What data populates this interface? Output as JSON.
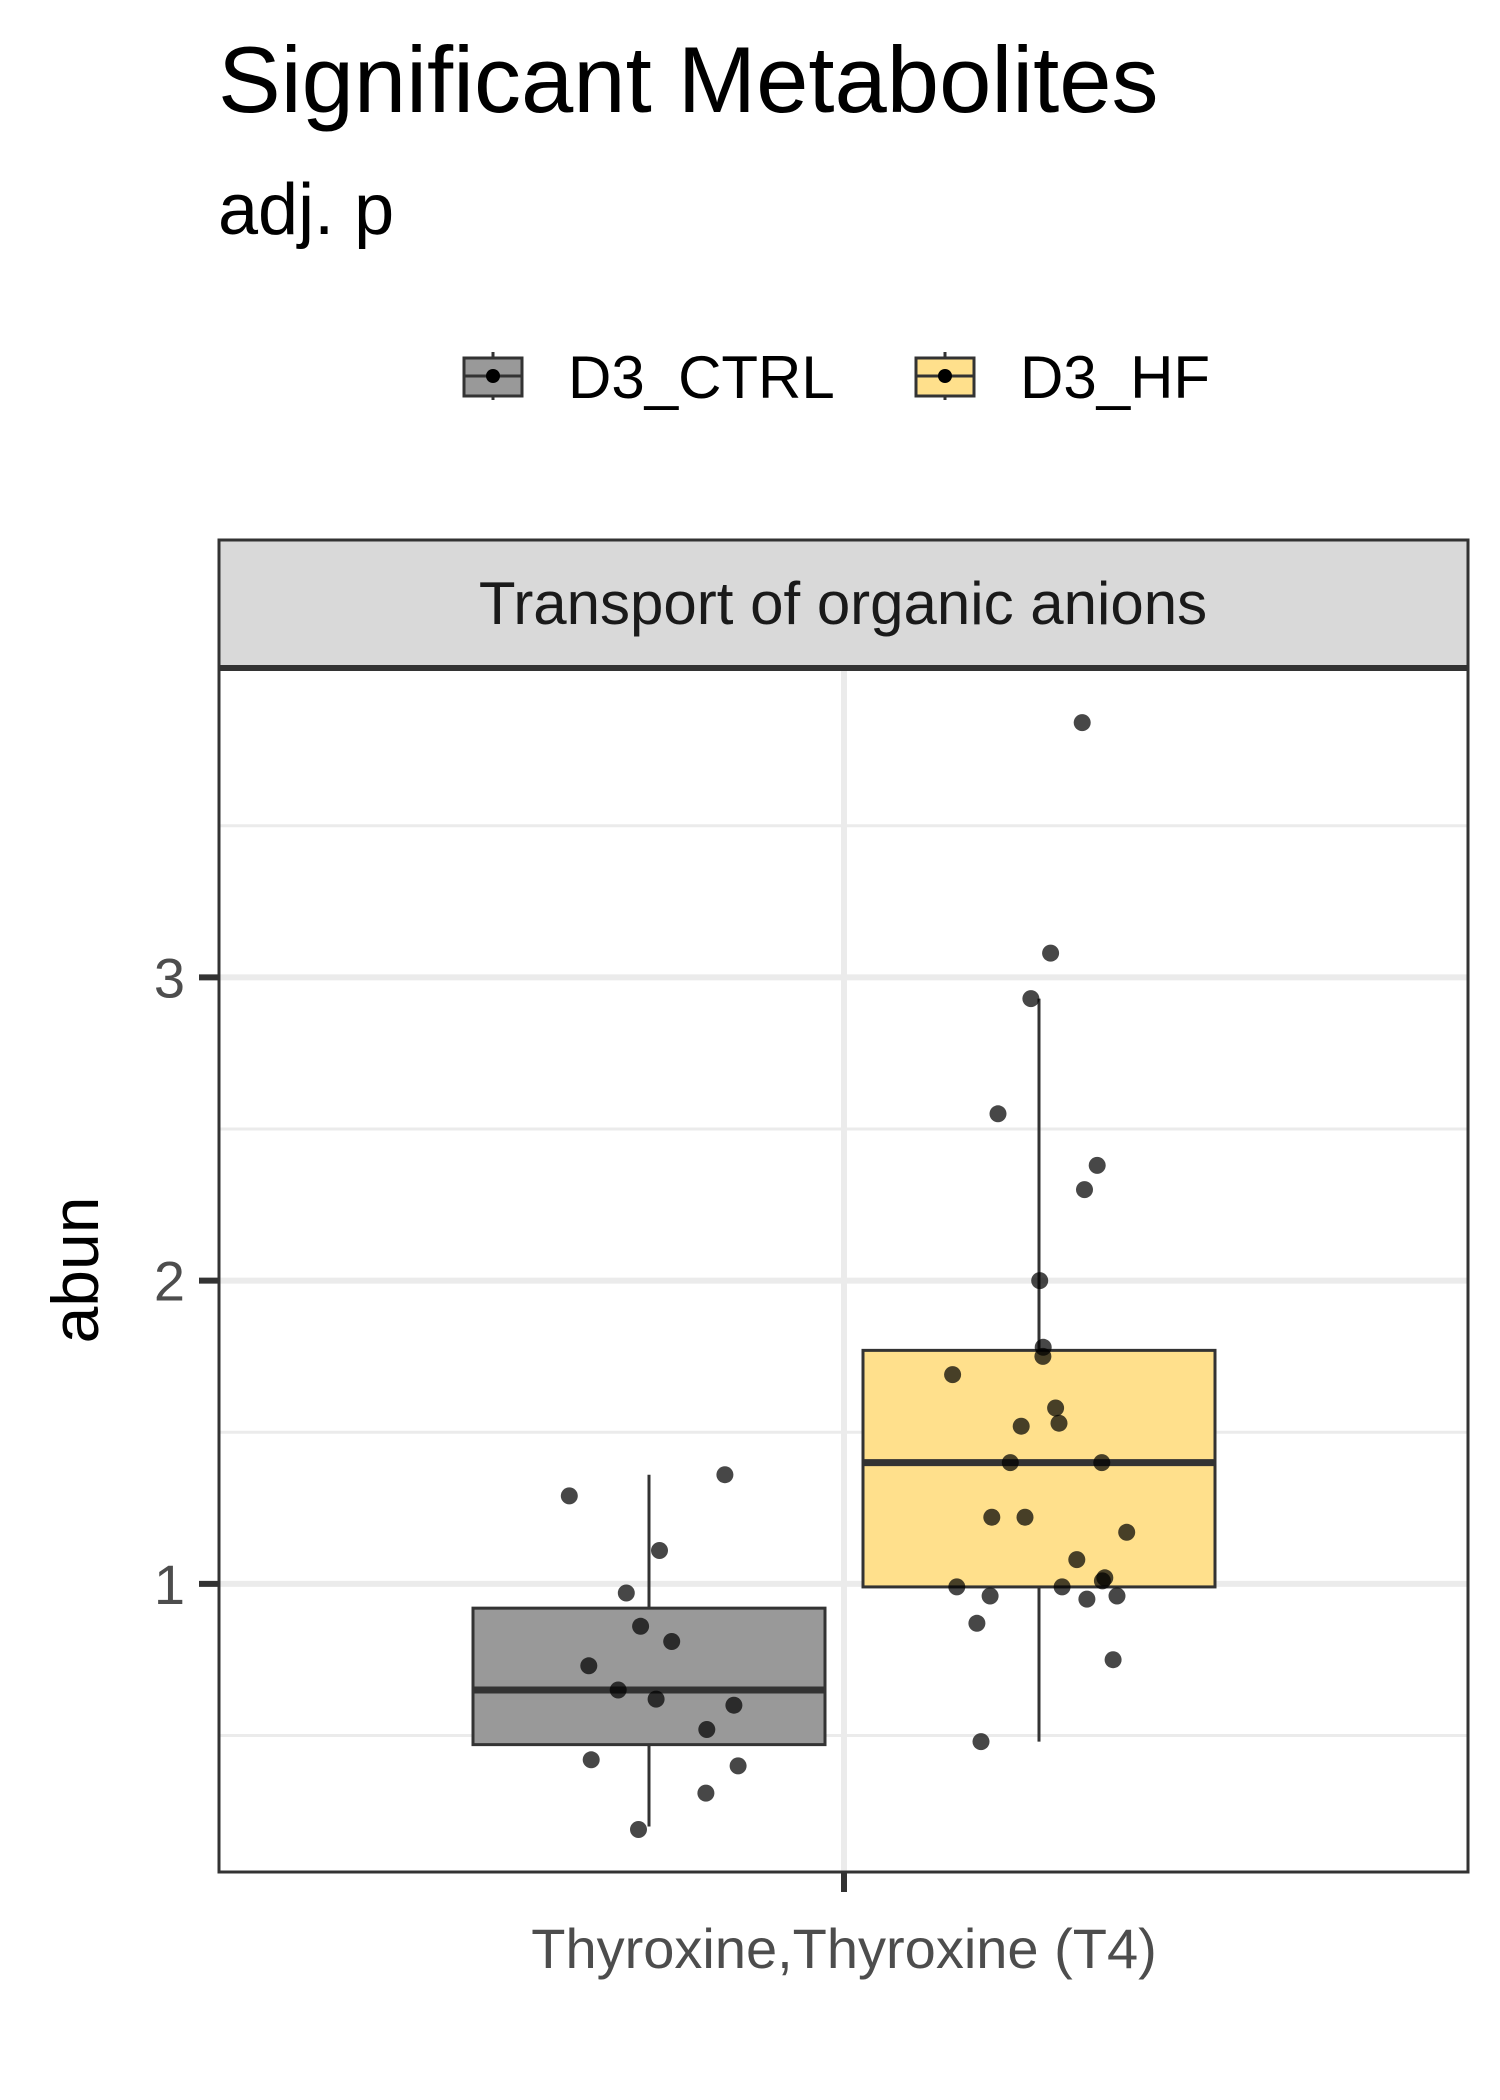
{
  "chart_data": {
    "type": "box",
    "title": "Significant Metabolites",
    "subtitle": "adj. p",
    "facet_label": "Transport of organic anions",
    "xlabel": "",
    "ylabel": "abun",
    "categories": [
      "Thyroxine,Thyroxine (T4)"
    ],
    "ylim": [
      0.05,
      4.02
    ],
    "yticks": [
      1,
      2,
      3
    ],
    "grid": true,
    "legend_position": "top",
    "series": [
      {
        "name": "D3_CTRL",
        "color": "#999999",
        "box": {
          "q1": 0.47,
          "median": 0.65,
          "q3": 0.92,
          "whisker_low": 0.2,
          "whisker_high": 1.36
        },
        "points": [
          1.36,
          1.29,
          1.11,
          0.97,
          0.86,
          0.81,
          0.73,
          0.65,
          0.62,
          0.6,
          0.52,
          0.42,
          0.4,
          0.31,
          0.19
        ]
      },
      {
        "name": "D3_HF",
        "color": "#FFE08C",
        "box": {
          "q1": 0.99,
          "median": 1.4,
          "q3": 1.77,
          "whisker_low": 0.48,
          "whisker_high": 2.93
        },
        "points": [
          3.84,
          3.08,
          2.93,
          2.55,
          2.38,
          2.3,
          2.0,
          1.78,
          1.75,
          1.69,
          1.58,
          1.53,
          1.52,
          1.4,
          1.4,
          1.22,
          1.22,
          1.17,
          1.08,
          1.02,
          1.01,
          0.99,
          0.99,
          0.96,
          0.96,
          0.95,
          0.87,
          0.75,
          0.48
        ]
      }
    ]
  }
}
